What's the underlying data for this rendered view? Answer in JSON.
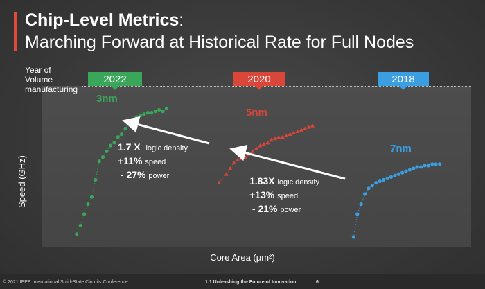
{
  "slide": {
    "title_bold": "Chip-Level Metrics",
    "title_rest": ":",
    "subtitle": "Marching Forward at Historical Rate for Full Nodes",
    "year_label": "Year of Volume manufacturing"
  },
  "footer": {
    "copyright": "© 2021 IEEE International Solid-State Circuits Conference",
    "session": "1.1 Unleashing the Future of Innovation",
    "page": "6"
  },
  "annotations": {
    "a1": {
      "density_val": "1.7 X",
      "density_lab": "logic density",
      "speed_val": "+11%",
      "speed_lab": "speed",
      "power_val": "- 27%",
      "power_lab": "power"
    },
    "a2": {
      "density_val": "1.83X",
      "density_lab": "logic density",
      "speed_val": "+13%",
      "speed_lab": "speed",
      "power_val": "- 21%",
      "power_lab": "power"
    }
  },
  "chart_data": {
    "type": "scatter",
    "title": "",
    "xlabel": "Core Area (µm²)",
    "ylabel": "Speed (GHz)",
    "xlim": [
      0,
      100
    ],
    "ylim": [
      0,
      100
    ],
    "series": [
      {
        "name": "3nm",
        "year": "2022",
        "color": "#3aa65a",
        "marker": "circle",
        "points": [
          [
            2,
            4
          ],
          [
            3,
            10
          ],
          [
            4,
            18
          ],
          [
            5,
            25
          ],
          [
            6,
            30
          ],
          [
            7,
            42
          ],
          [
            8,
            55
          ],
          [
            9,
            58
          ],
          [
            10,
            62
          ],
          [
            11,
            66
          ],
          [
            12,
            68
          ],
          [
            13,
            72
          ],
          [
            14,
            74
          ],
          [
            15,
            78
          ],
          [
            16,
            82
          ],
          [
            17,
            84
          ],
          [
            18,
            86
          ],
          [
            19,
            87
          ],
          [
            20,
            88
          ],
          [
            21,
            89
          ],
          [
            22,
            89
          ],
          [
            23,
            90
          ],
          [
            24,
            91
          ],
          [
            25,
            90
          ],
          [
            26,
            92
          ]
        ]
      },
      {
        "name": "5nm",
        "year": "2020",
        "color": "#d9473a",
        "marker": "triangle",
        "points": [
          [
            40,
            40
          ],
          [
            42,
            46
          ],
          [
            43,
            50
          ],
          [
            44,
            54
          ],
          [
            45,
            56
          ],
          [
            46,
            57
          ],
          [
            47,
            58
          ],
          [
            48,
            60
          ],
          [
            49,
            62
          ],
          [
            50,
            64
          ],
          [
            51,
            66
          ],
          [
            52,
            67
          ],
          [
            53,
            68
          ],
          [
            54,
            70
          ],
          [
            55,
            71
          ],
          [
            56,
            72
          ],
          [
            57,
            72
          ],
          [
            58,
            73
          ],
          [
            59,
            74
          ],
          [
            60,
            75
          ],
          [
            61,
            76
          ],
          [
            62,
            77
          ],
          [
            63,
            78
          ],
          [
            64,
            79
          ],
          [
            65,
            80
          ]
        ]
      },
      {
        "name": "7nm",
        "year": "2018",
        "color": "#3a9ee0",
        "marker": "circle",
        "points": [
          [
            76,
            2
          ],
          [
            77,
            18
          ],
          [
            78,
            25
          ],
          [
            79,
            32
          ],
          [
            80,
            36
          ],
          [
            81,
            38
          ],
          [
            82,
            40
          ],
          [
            83,
            41
          ],
          [
            84,
            42
          ],
          [
            85,
            43
          ],
          [
            86,
            44
          ],
          [
            87,
            45
          ],
          [
            88,
            46
          ],
          [
            89,
            47
          ],
          [
            90,
            48
          ],
          [
            91,
            49
          ],
          [
            92,
            50
          ],
          [
            93,
            51
          ],
          [
            94,
            51
          ],
          [
            95,
            52
          ],
          [
            96,
            52
          ],
          [
            97,
            53
          ],
          [
            98,
            53
          ],
          [
            99,
            53
          ]
        ]
      }
    ],
    "callouts": [
      {
        "from": "5nm",
        "to": "3nm",
        "density": "1.7 X",
        "speed": "+11%",
        "power": "- 27%"
      },
      {
        "from": "7nm",
        "to": "5nm",
        "density": "1.83X",
        "speed": "+13%",
        "power": "- 21%"
      }
    ]
  }
}
